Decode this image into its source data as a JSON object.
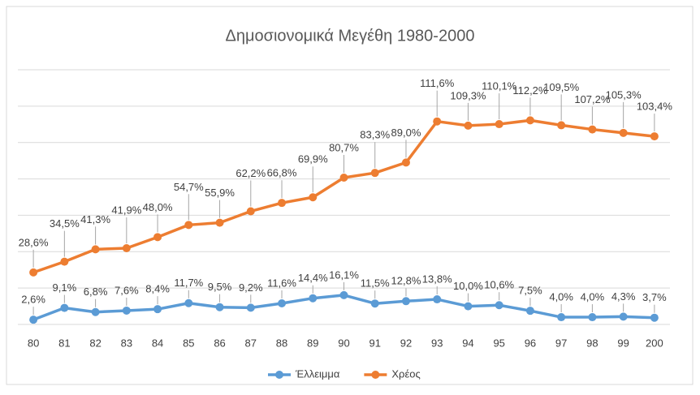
{
  "chart_data": {
    "type": "line",
    "title": "Δημοσιονομικά Μεγέθη 1980-2000",
    "categories": [
      "80",
      "81",
      "82",
      "83",
      "84",
      "85",
      "86",
      "87",
      "88",
      "89",
      "90",
      "91",
      "92",
      "93",
      "94",
      "95",
      "96",
      "97",
      "98",
      "99",
      "200"
    ],
    "series": [
      {
        "name": "Έλλειμμα",
        "color": "#5b9bd5",
        "values": [
          2.6,
          9.1,
          6.8,
          7.6,
          8.4,
          11.7,
          9.5,
          9.2,
          11.6,
          14.4,
          16.1,
          11.5,
          12.8,
          13.8,
          10.0,
          10.6,
          7.5,
          4.0,
          4.0,
          4.3,
          3.7
        ],
        "value_labels": [
          "2,6%",
          "9,1%",
          "6,8%",
          "7,6%",
          "8,4%",
          "11,7%",
          "9,5%",
          "9,2%",
          "11,6%",
          "14,4%",
          "16,1%",
          "11,5%",
          "12,8%",
          "13,8%",
          "10,0%",
          "10,6%",
          "7,5%",
          "4,0%",
          "4,0%",
          "4,3%",
          "3,7%"
        ]
      },
      {
        "name": "Χρέος",
        "color": "#ed7d31",
        "values": [
          28.6,
          34.5,
          41.3,
          41.9,
          48.0,
          54.7,
          55.9,
          62.2,
          66.8,
          69.9,
          80.7,
          83.3,
          89.0,
          111.6,
          109.3,
          110.1,
          112.2,
          109.5,
          107.2,
          105.3,
          103.4
        ],
        "value_labels": [
          "28,6%",
          "34,5%",
          "41,3%",
          "41,9%",
          "48,0%",
          "54,7%",
          "55,9%",
          "62,2%",
          "66,8%",
          "69,9%",
          "80,7%",
          "83,3%",
          "89,0%",
          "111,6%",
          "109,3%",
          "110,1%",
          "112,2%",
          "109,5%",
          "107,2%",
          "105,3%",
          "103,4%"
        ]
      }
    ],
    "ylim": [
      0,
      140
    ],
    "yticks": [
      0,
      20,
      40,
      60,
      80,
      100,
      120,
      140
    ],
    "grid": true,
    "legend": "bottom"
  }
}
